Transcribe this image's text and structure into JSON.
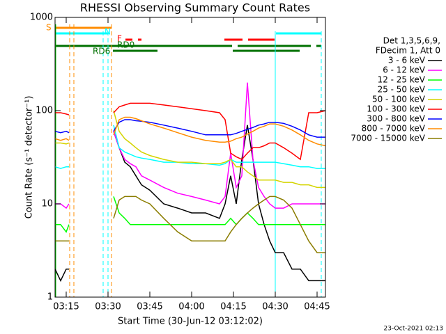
{
  "chart_data": {
    "type": "line",
    "title": "RHESSI Observing Summary Count Rates",
    "x_label": "Start Time (30-Jun-12 03:12:02)",
    "y_label": "Count Rate (s⁻¹ detector⁻¹)",
    "footer": "23-Oct-2021 02:13",
    "info": [
      "Det 1,3,5,6,9,",
      "FDecim 1, Att 0"
    ],
    "flags": [
      "S",
      "N",
      "F",
      "RD0",
      "RD6"
    ],
    "log_scale": true,
    "xlim": [
      "03:11",
      "04:48"
    ],
    "xticks": [
      "03:15",
      "03:30",
      "03:45",
      "04:00",
      "04:15",
      "04:30",
      "04:45"
    ],
    "ylim": [
      1,
      1000
    ],
    "yticks": [
      1,
      10,
      100,
      1000
    ],
    "x": [
      "03:11",
      "03:13",
      "03:15",
      "03:16",
      "03:20",
      "03:32",
      "03:34",
      "03:36",
      "03:38",
      "03:40",
      "03:42",
      "03:45",
      "03:50",
      "03:55",
      "04:00",
      "04:05",
      "04:10",
      "04:12",
      "04:14",
      "04:16",
      "04:18",
      "04:20",
      "04:22",
      "04:24",
      "04:26",
      "04:28",
      "04:30",
      "04:33",
      "04:36",
      "04:39",
      "04:42",
      "04:45",
      "04:48"
    ],
    "series": [
      {
        "name": "3 - 6 keV",
        "color": "#000000",
        "values": [
          2,
          1.5,
          2,
          2,
          null,
          60,
          40,
          28,
          25,
          20,
          16,
          14,
          10,
          9,
          8,
          8,
          7,
          10,
          20,
          10,
          30,
          70,
          30,
          10,
          6,
          4,
          3,
          3,
          2,
          2,
          1.5,
          1.5,
          1.5
        ]
      },
      {
        "name": "6 - 12 keV",
        "color": "#ff00ff",
        "values": [
          10,
          10,
          9,
          10,
          null,
          60,
          40,
          30,
          27,
          25,
          20,
          18,
          15,
          13,
          12,
          11,
          10,
          12,
          35,
          15,
          20,
          200,
          30,
          15,
          12,
          10,
          9,
          9,
          10,
          10,
          10,
          10,
          10
        ]
      },
      {
        "name": "12 - 25 keV",
        "color": "#00ff00",
        "values": [
          6,
          6,
          5,
          6,
          null,
          12,
          8,
          7,
          6,
          6,
          6,
          6,
          6,
          6,
          6,
          6,
          6,
          6,
          7,
          6,
          7,
          8,
          7,
          6,
          6,
          6,
          6,
          6,
          6,
          6,
          6,
          6,
          6
        ]
      },
      {
        "name": "25 - 50 keV",
        "color": "#00ffff",
        "values": [
          25,
          24,
          25,
          25,
          null,
          70,
          40,
          36,
          34,
          32,
          31,
          30,
          28,
          28,
          27,
          27,
          26,
          27,
          30,
          28,
          28,
          28,
          28,
          28,
          28,
          28,
          28,
          27,
          26,
          25,
          25,
          24,
          24
        ]
      },
      {
        "name": "50 - 100 keV",
        "color": "#d4d400",
        "values": [
          45,
          45,
          44,
          45,
          null,
          100,
          60,
          50,
          45,
          40,
          36,
          33,
          30,
          28,
          28,
          27,
          27,
          28,
          30,
          25,
          25,
          22,
          20,
          18,
          18,
          18,
          18,
          17,
          17,
          16,
          16,
          15,
          15
        ]
      },
      {
        "name": "100 - 300 keV",
        "color": "#ff0000",
        "values": [
          95,
          95,
          92,
          90,
          null,
          95,
          110,
          115,
          120,
          120,
          120,
          120,
          115,
          110,
          105,
          100,
          95,
          80,
          35,
          32,
          30,
          35,
          40,
          40,
          42,
          45,
          45,
          40,
          35,
          30,
          95,
          95,
          100
        ]
      },
      {
        "name": "300 - 800 keV",
        "color": "#0000ff",
        "values": [
          60,
          58,
          60,
          58,
          null,
          60,
          75,
          80,
          80,
          78,
          77,
          75,
          70,
          65,
          60,
          55,
          55,
          55,
          55,
          57,
          60,
          63,
          66,
          70,
          72,
          75,
          75,
          73,
          68,
          62,
          55,
          52,
          52
        ]
      },
      {
        "name": "800 - 7000 keV",
        "color": "#ff8c00",
        "values": [
          50,
          48,
          50,
          48,
          null,
          55,
          80,
          85,
          85,
          82,
          78,
          72,
          65,
          58,
          52,
          48,
          46,
          46,
          47,
          50,
          52,
          56,
          60,
          65,
          68,
          72,
          72,
          68,
          62,
          55,
          48,
          44,
          42
        ]
      },
      {
        "name": "7000 - 15000 keV",
        "color": "#8b7d00",
        "values": [
          4,
          4,
          4,
          4,
          null,
          7,
          11,
          12,
          12,
          12,
          11,
          10,
          7,
          5,
          4,
          4,
          4,
          4,
          5,
          6,
          7,
          8,
          9,
          10,
          11,
          12,
          12,
          11,
          9,
          6,
          4,
          3,
          3
        ]
      }
    ]
  }
}
